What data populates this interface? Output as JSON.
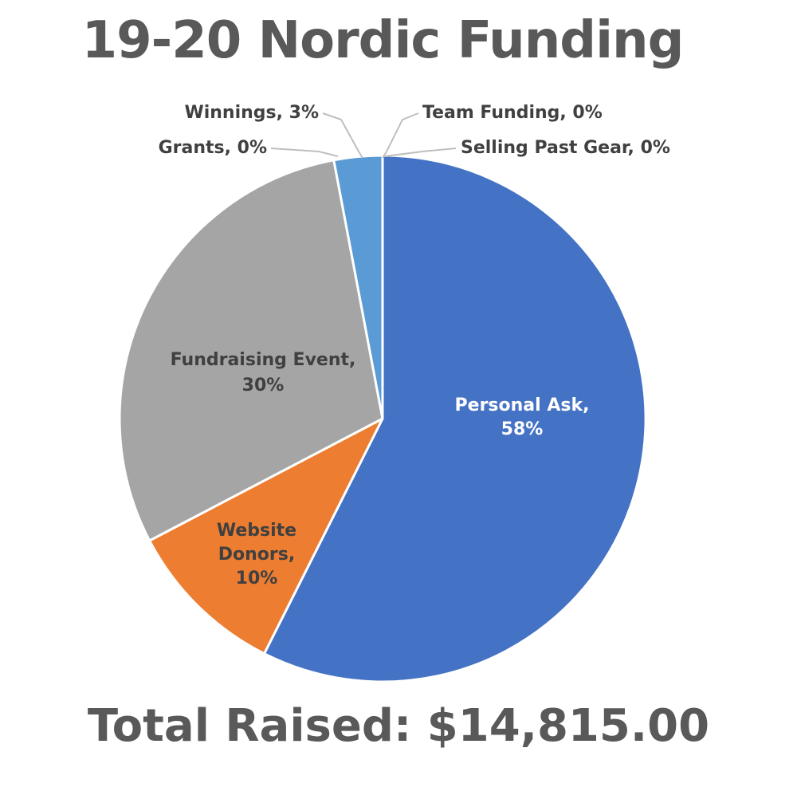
{
  "title": "19-20 Nordic Funding",
  "footer": "Total Raised: $14,815.00",
  "chart_data": {
    "type": "pie",
    "title": "19-20 Nordic Funding",
    "start_angle_deg": 0,
    "direction": "clockwise",
    "slices": [
      {
        "label": "Personal Ask",
        "percent_label": "58%",
        "value": 58,
        "color": "#4472C4",
        "label_color": "#FFFFFF",
        "label_lines": [
          "Personal Ask,",
          "58%"
        ]
      },
      {
        "label": "Website Donors",
        "percent_label": "10%",
        "value": 10,
        "color": "#ED7D31",
        "label_color": "#404040",
        "label_lines": [
          "Website",
          "Donors,",
          "10%"
        ]
      },
      {
        "label": "Fundraising Event",
        "percent_label": "30%",
        "value": 30,
        "color": "#A5A5A5",
        "label_color": "#404040",
        "label_lines": [
          "Fundraising Event,",
          "30%"
        ]
      },
      {
        "label": "Grants",
        "percent_label": "0%",
        "value": 0,
        "color": "#FFC000",
        "label_color": "#404040",
        "label_lines": [
          "Grants, 0%"
        ]
      },
      {
        "label": "Winnings",
        "percent_label": "3%",
        "value": 3,
        "color": "#5B9BD5",
        "label_color": "#404040",
        "label_lines": [
          "Winnings, 3%"
        ]
      },
      {
        "label": "Team Funding",
        "percent_label": "0%",
        "value": 0,
        "color": "#70AD47",
        "label_color": "#404040",
        "label_lines": [
          "Team Funding, 0%"
        ]
      },
      {
        "label": "Selling Past Gear",
        "percent_label": "0%",
        "value": 0,
        "color": "#264478",
        "label_color": "#404040",
        "label_lines": [
          "Selling Past Gear, 0%"
        ]
      }
    ]
  }
}
